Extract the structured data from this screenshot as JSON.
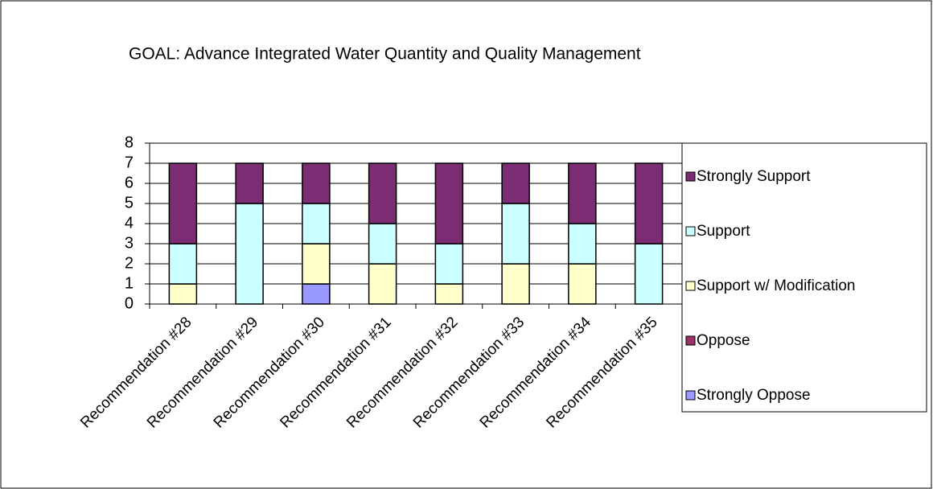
{
  "chart_data": {
    "type": "stacked_bar",
    "title": "GOAL: Advance Integrated Water Quantity and Quality Management",
    "categories": [
      "Recommendation #28",
      "Recommendation #29",
      "Recommendation #30",
      "Recommendation #31",
      "Recommendation #32",
      "Recommendation #33",
      "Recommendation #34",
      "Recommendation #35"
    ],
    "series": [
      {
        "name": "Strongly Support",
        "color": "#7b2c72",
        "values": [
          4,
          2,
          2,
          3,
          4,
          2,
          3,
          4
        ]
      },
      {
        "name": "Support",
        "color": "#ccffff",
        "values": [
          2,
          5,
          2,
          2,
          2,
          3,
          2,
          3
        ]
      },
      {
        "name": "Support w/ Modification",
        "color": "#ffffcc",
        "values": [
          1,
          0,
          2,
          2,
          1,
          2,
          2,
          0
        ]
      },
      {
        "name": "Oppose",
        "color": "#993366",
        "values": [
          0,
          0,
          0,
          0,
          0,
          0,
          0,
          0
        ]
      },
      {
        "name": "Strongly Oppose",
        "color": "#9999ff",
        "values": [
          0,
          0,
          1,
          0,
          0,
          0,
          0,
          0
        ]
      }
    ],
    "ylim": [
      0,
      8
    ],
    "yticks": [
      0,
      1,
      2,
      3,
      4,
      5,
      6,
      7,
      8
    ],
    "grid": true,
    "legend": "right"
  }
}
